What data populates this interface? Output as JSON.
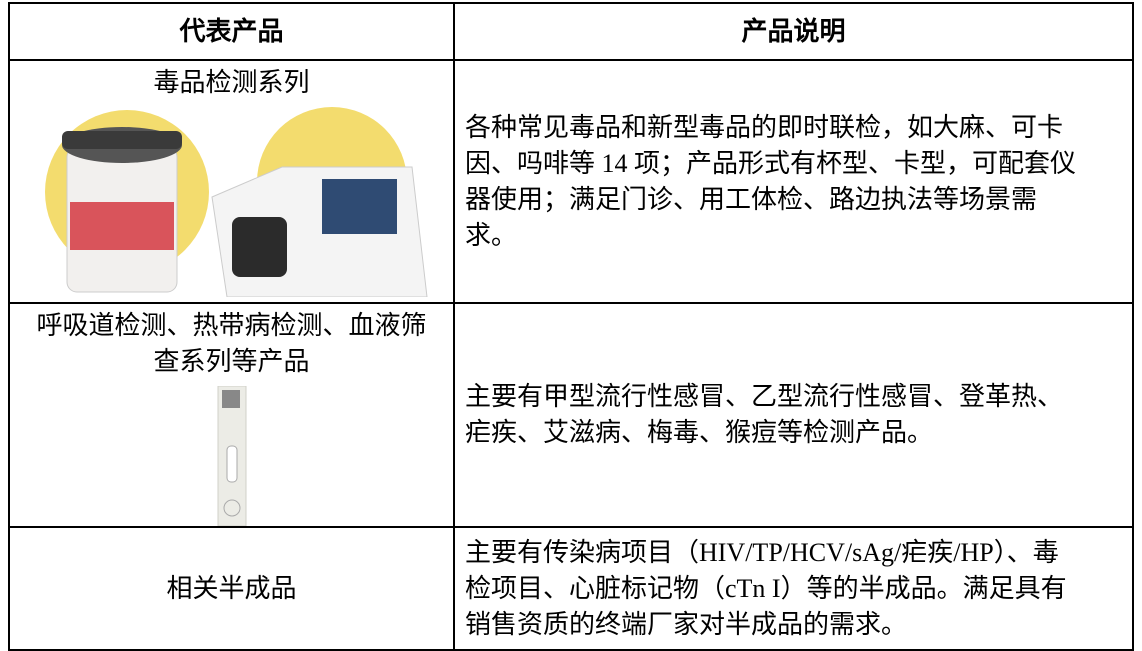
{
  "table": {
    "header": [
      "代表产品",
      "产品说明"
    ],
    "rows": [
      [
        "毒品检测系列",
        "各种常见毒品和新型毒品的即时联检，如大麻、可卡因、吗啡等 14 项；产品形式有杯型、卡型，可配套仪器使用；满足门诊、用工体检、路边执法等场景需求。"
      ],
      [
        "呼吸道检测、热带病检测、血液筛查系列等产品",
        "主要有甲型流行性感冒、乙型流行性感冒、登革热、疟疾、艾滋病、梅毒、猴痘等检测产品。"
      ],
      [
        "相关半成品",
        "主要有传染病项目（HIV/TP/HCV/sAg/疟疾/HP）、毒检项目、心脏标记物（cTn I）等的半成品。满足具有销售资质的终端厂家对半成品的需求。"
      ]
    ]
  }
}
